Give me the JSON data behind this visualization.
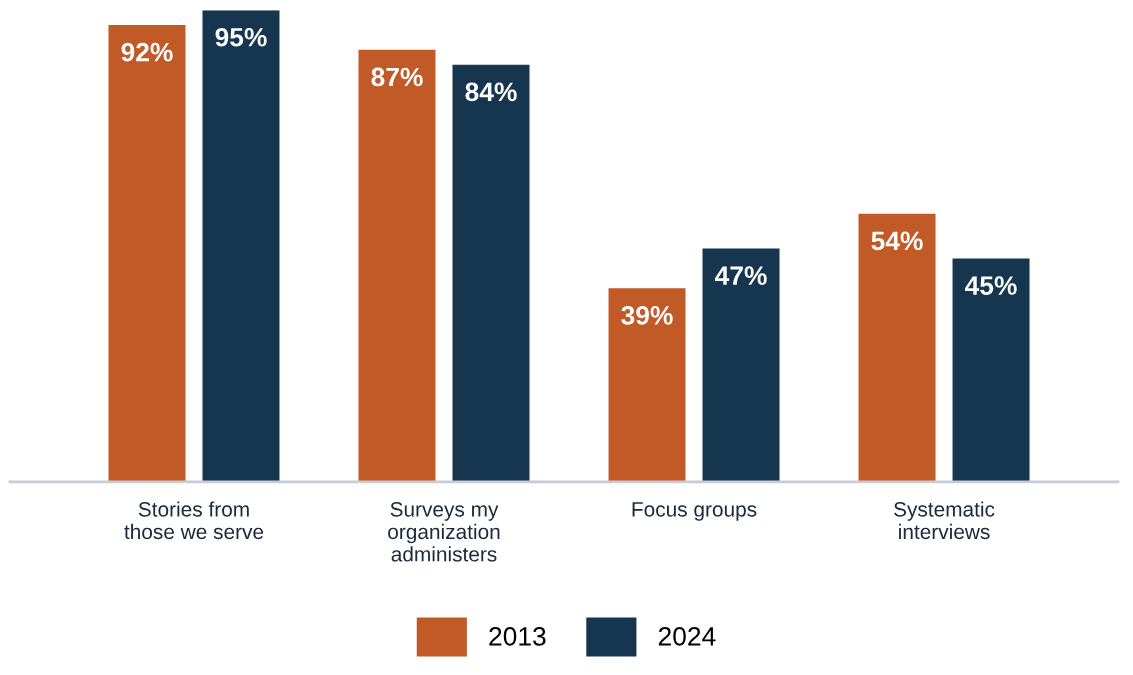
{
  "chart_data": {
    "type": "bar",
    "categories": [
      "Stories from\nthose we serve",
      "Surveys my\norganization\nadministers",
      "Focus groups",
      "Systematic\ninterviews"
    ],
    "series": [
      {
        "name": "2013",
        "color": "#c25a27",
        "values": [
          92,
          87,
          39,
          54
        ],
        "value_labels": [
          "92%",
          "87%",
          "39%",
          "54%"
        ]
      },
      {
        "name": "2024",
        "color": "#16354f",
        "values": [
          95,
          84,
          47,
          45
        ],
        "value_labels": [
          "95%",
          "84%",
          "47%",
          "45%"
        ]
      }
    ],
    "legend": "bottom",
    "grid": false
  }
}
